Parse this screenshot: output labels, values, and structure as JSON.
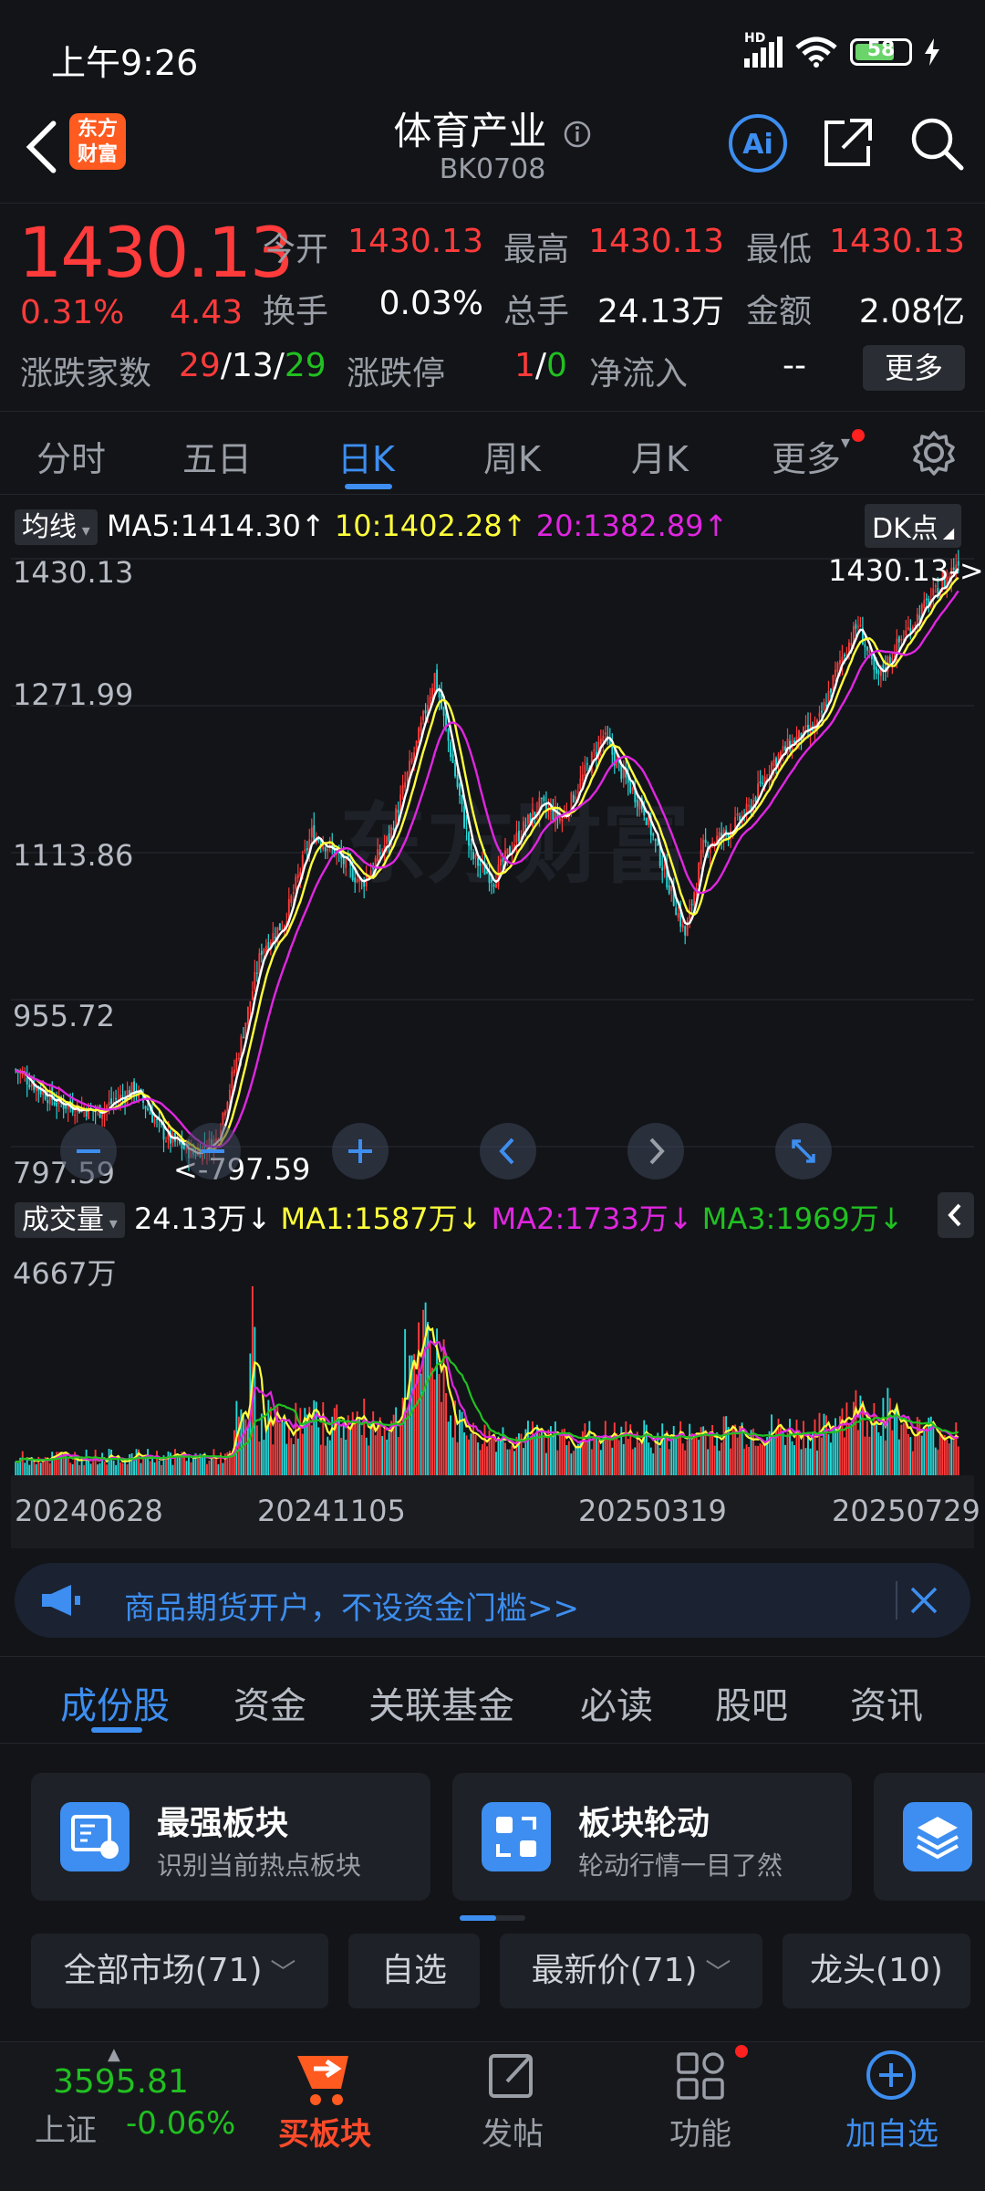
{
  "status": {
    "time": "上午9:26",
    "battery": "58",
    "network": "HD"
  },
  "header": {
    "name": "体育产业",
    "code": "BK0708",
    "logo_text": "东方财富"
  },
  "quote": {
    "price": "1430.13",
    "pct": "0.31%",
    "chg": "4.43",
    "open_label": "今开",
    "open": "1430.13",
    "high_label": "最高",
    "high": "1430.13",
    "low_label": "最低",
    "low": "1430.13",
    "turnover_label": "换手",
    "turnover": "0.03%",
    "volume_label": "总手",
    "volume": "24.13万",
    "amount_label": "金额",
    "amount": "2.08亿",
    "breadth_label": "涨跌家数",
    "up": "29",
    "flat": "13",
    "down": "29",
    "limit_label": "涨跌停",
    "limit_up": "1",
    "limit_down": "0",
    "netflow_label": "净流入",
    "netflow": "--",
    "more": "更多"
  },
  "tabs": [
    "分时",
    "五日",
    "日K",
    "周K",
    "月K",
    "更多"
  ],
  "kline": {
    "ma_select": "均线",
    "ma5": "MA5:1414.30",
    "ma10": "10:1402.28",
    "ma20": "20:1382.89",
    "dk_button": "DK点",
    "price_ticks": [
      "1430.13",
      "1271.99",
      "1113.86",
      "955.72",
      "797.59"
    ],
    "high_marker": "1430.13->",
    "low_marker": "<-797.59",
    "watermark": "东方财富"
  },
  "volume": {
    "select": "成交量",
    "current": "24.13万",
    "ma1": "MA1:1587万",
    "ma2": "MA2:1733万",
    "ma3": "MA3:1969万",
    "max_label": "4667万",
    "dates": [
      "20240628",
      "20241105",
      "20250319",
      "20250729"
    ]
  },
  "colors": {
    "up": "#ff3b3b",
    "down": "#26d7d7",
    "ma5": "#ffffff",
    "ma10": "#ffff3a",
    "ma20": "#e026e0",
    "accent": "#3d8ef0",
    "vma3": "#21c021"
  },
  "ad": {
    "text": "商品期货开户，不设资金门槛>>"
  },
  "sub_tabs": [
    "成份股",
    "资金",
    "关联基金",
    "必读",
    "股吧",
    "资讯"
  ],
  "cards": [
    {
      "title": "最强板块",
      "sub": "识别当前热点板块"
    },
    {
      "title": "板块轮动",
      "sub": "轮动行情一目了然"
    }
  ],
  "filters": [
    "全部市场(71)",
    "自选",
    "最新价(71)",
    "龙头(10)"
  ],
  "bottom_nav": {
    "index_value": "3595.81",
    "index_name": "上证",
    "index_change": "-0.06%",
    "buy": "买板块",
    "post": "发帖",
    "func": "功能",
    "add": "加自选"
  }
}
